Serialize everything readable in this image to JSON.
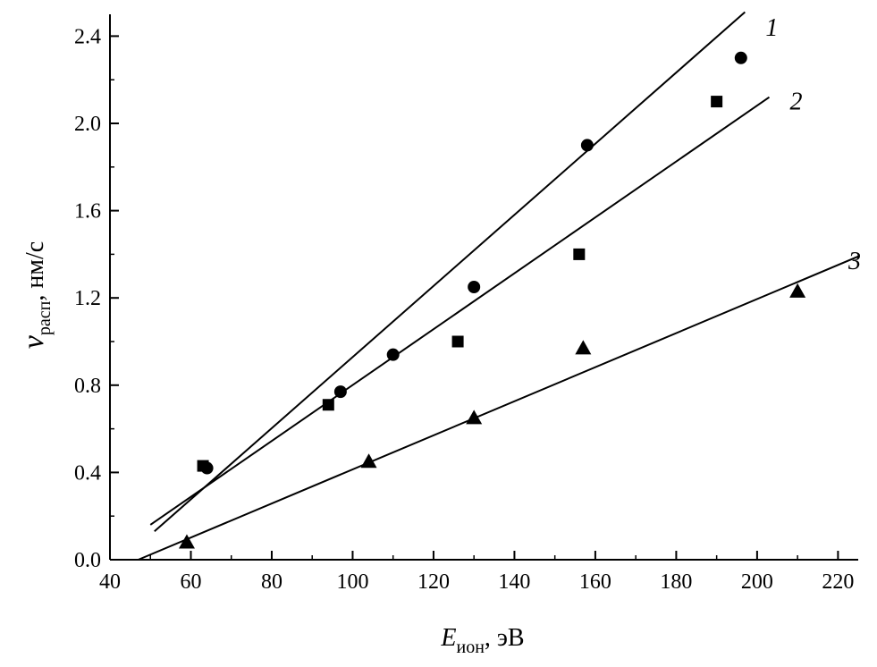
{
  "chart_data": {
    "type": "scatter",
    "title": "",
    "xlabel": {
      "main": "E",
      "sub": "ион",
      "rest": ", эВ"
    },
    "ylabel": {
      "main": "v",
      "sub": "расп",
      "rest": ", нм/с"
    },
    "xlim": [
      40,
      225
    ],
    "ylim": [
      0,
      2.5
    ],
    "xticks": [
      40,
      60,
      80,
      100,
      120,
      140,
      160,
      180,
      200,
      220
    ],
    "yticks": [
      0.0,
      0.4,
      0.8,
      1.2,
      1.6,
      2.0,
      2.4
    ],
    "xtick_labels": [
      "40",
      "60",
      "80",
      "100",
      "120",
      "140",
      "160",
      "180",
      "200",
      "220"
    ],
    "ytick_labels": [
      "0.0",
      "0.4",
      "0.8",
      "1.2",
      "1.6",
      "2.0",
      "2.4"
    ],
    "grid": false,
    "series": [
      {
        "name": "1",
        "marker": "circle",
        "points": [
          [
            64,
            0.42
          ],
          [
            97,
            0.77
          ],
          [
            110,
            0.94
          ],
          [
            130,
            1.25
          ],
          [
            158,
            1.9
          ],
          [
            196,
            2.3
          ]
        ],
        "fit_line": [
          [
            51,
            0.13
          ],
          [
            197,
            2.51
          ]
        ]
      },
      {
        "name": "2",
        "marker": "square",
        "points": [
          [
            63,
            0.43
          ],
          [
            94,
            0.71
          ],
          [
            126,
            1.0
          ],
          [
            156,
            1.4
          ],
          [
            190,
            2.1
          ]
        ],
        "fit_line": [
          [
            50,
            0.16
          ],
          [
            203,
            2.12
          ]
        ]
      },
      {
        "name": "3",
        "marker": "triangle",
        "points": [
          [
            59,
            0.08
          ],
          [
            104,
            0.45
          ],
          [
            130,
            0.65
          ],
          [
            157,
            0.97
          ],
          [
            210,
            1.23
          ]
        ],
        "fit_line": [
          [
            47,
            0.0
          ],
          [
            225,
            1.39
          ]
        ]
      }
    ]
  }
}
